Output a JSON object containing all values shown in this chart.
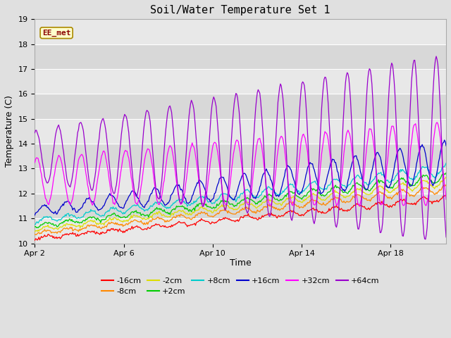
{
  "title": "Soil/Water Temperature Set 1",
  "xlabel": "Time",
  "ylabel": "Temperature (C)",
  "ylim": [
    10.0,
    19.0
  ],
  "yticks": [
    10.0,
    11.0,
    12.0,
    13.0,
    14.0,
    15.0,
    16.0,
    17.0,
    18.0,
    19.0
  ],
  "xlim": [
    0,
    18.5
  ],
  "xtick_positions": [
    0,
    4,
    8,
    12,
    16
  ],
  "xtick_labels": [
    "Apr 2",
    "Apr 6",
    "Apr 10",
    "Apr 14",
    "Apr 18"
  ],
  "num_points": 500,
  "days": 18.5,
  "series": [
    {
      "label": "-16cm",
      "color": "#ff0000",
      "base_start": 10.2,
      "base_end": 11.8,
      "amp_start": 0.05,
      "amp_end": 0.12,
      "phase": -1.57
    },
    {
      "label": "-8cm",
      "color": "#ff8800",
      "base_start": 10.4,
      "base_end": 12.2,
      "amp_start": 0.06,
      "amp_end": 0.14,
      "phase": -1.57
    },
    {
      "label": "-2cm",
      "color": "#dddd00",
      "base_start": 10.55,
      "base_end": 12.45,
      "amp_start": 0.07,
      "amp_end": 0.16,
      "phase": -1.57
    },
    {
      "label": "+2cm",
      "color": "#00cc00",
      "base_start": 10.7,
      "base_end": 12.65,
      "amp_start": 0.08,
      "amp_end": 0.18,
      "phase": -1.57
    },
    {
      "label": "+8cm",
      "color": "#00cccc",
      "base_start": 10.9,
      "base_end": 12.95,
      "amp_start": 0.1,
      "amp_end": 0.22,
      "phase": -1.57
    },
    {
      "label": "+16cm",
      "color": "#0000cc",
      "base_start": 11.3,
      "base_end": 13.25,
      "amp_start": 0.15,
      "amp_end": 0.85,
      "phase": -1.0
    },
    {
      "label": "+32cm",
      "color": "#ff00ff",
      "base_start": 12.5,
      "base_end": 13.2,
      "amp_start": 0.9,
      "amp_end": 1.7,
      "phase": 1.0
    },
    {
      "label": "+64cm",
      "color": "#9900cc",
      "base_start": 13.5,
      "base_end": 13.8,
      "amp_start": 1.0,
      "amp_end": 3.8,
      "phase": 1.2
    }
  ],
  "band_colors": [
    "#e8e8e8",
    "#d8d8d8"
  ],
  "watermark_text": "EE_met",
  "watermark_color": "#8B0000",
  "watermark_bg": "#ffffcc",
  "watermark_edge": "#aa8800",
  "fig_bg": "#e0e0e0",
  "plot_bg": "#e8e8e8"
}
